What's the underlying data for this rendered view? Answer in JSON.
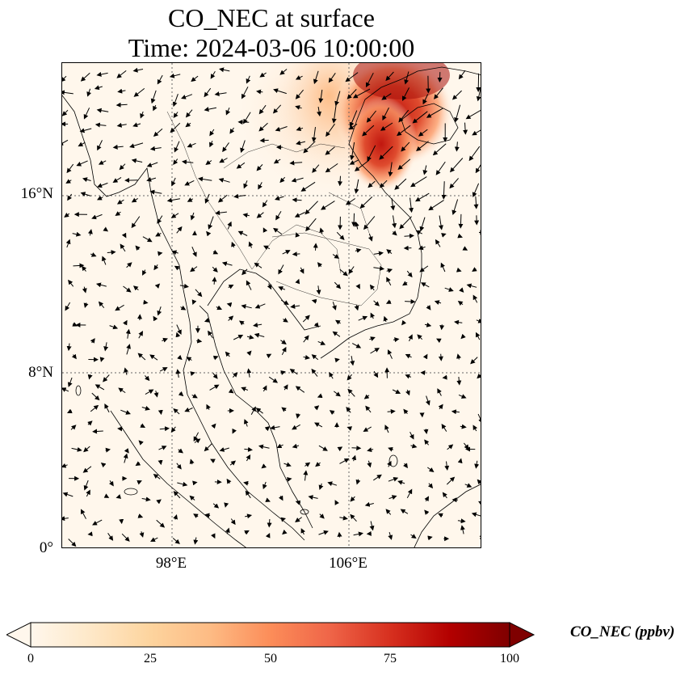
{
  "title": {
    "line1": "CO_NEC at surface",
    "line2": "Time: 2024-03-06 10:00:00"
  },
  "map": {
    "lat_labels": [
      "16°N",
      "8°N",
      "0°"
    ],
    "lon_labels": [
      "98°E",
      "106°E"
    ],
    "background_color": "#fff7ec",
    "gridline_style": "dotted gray",
    "plume_region": "northern Vietnam / Gulf of Tonkin (top-right)"
  },
  "colorbar": {
    "label": "CO_NEC (ppbv)",
    "ticks": [
      "0",
      "25",
      "50",
      "75",
      "100"
    ],
    "min": 0,
    "max": 100,
    "colormap": [
      "#fff7ec",
      "#fee8c8",
      "#fdd49e",
      "#fdbb84",
      "#fc8d59",
      "#ef6548",
      "#d7301f",
      "#b30000",
      "#7f0000"
    ],
    "extend": "both"
  }
}
